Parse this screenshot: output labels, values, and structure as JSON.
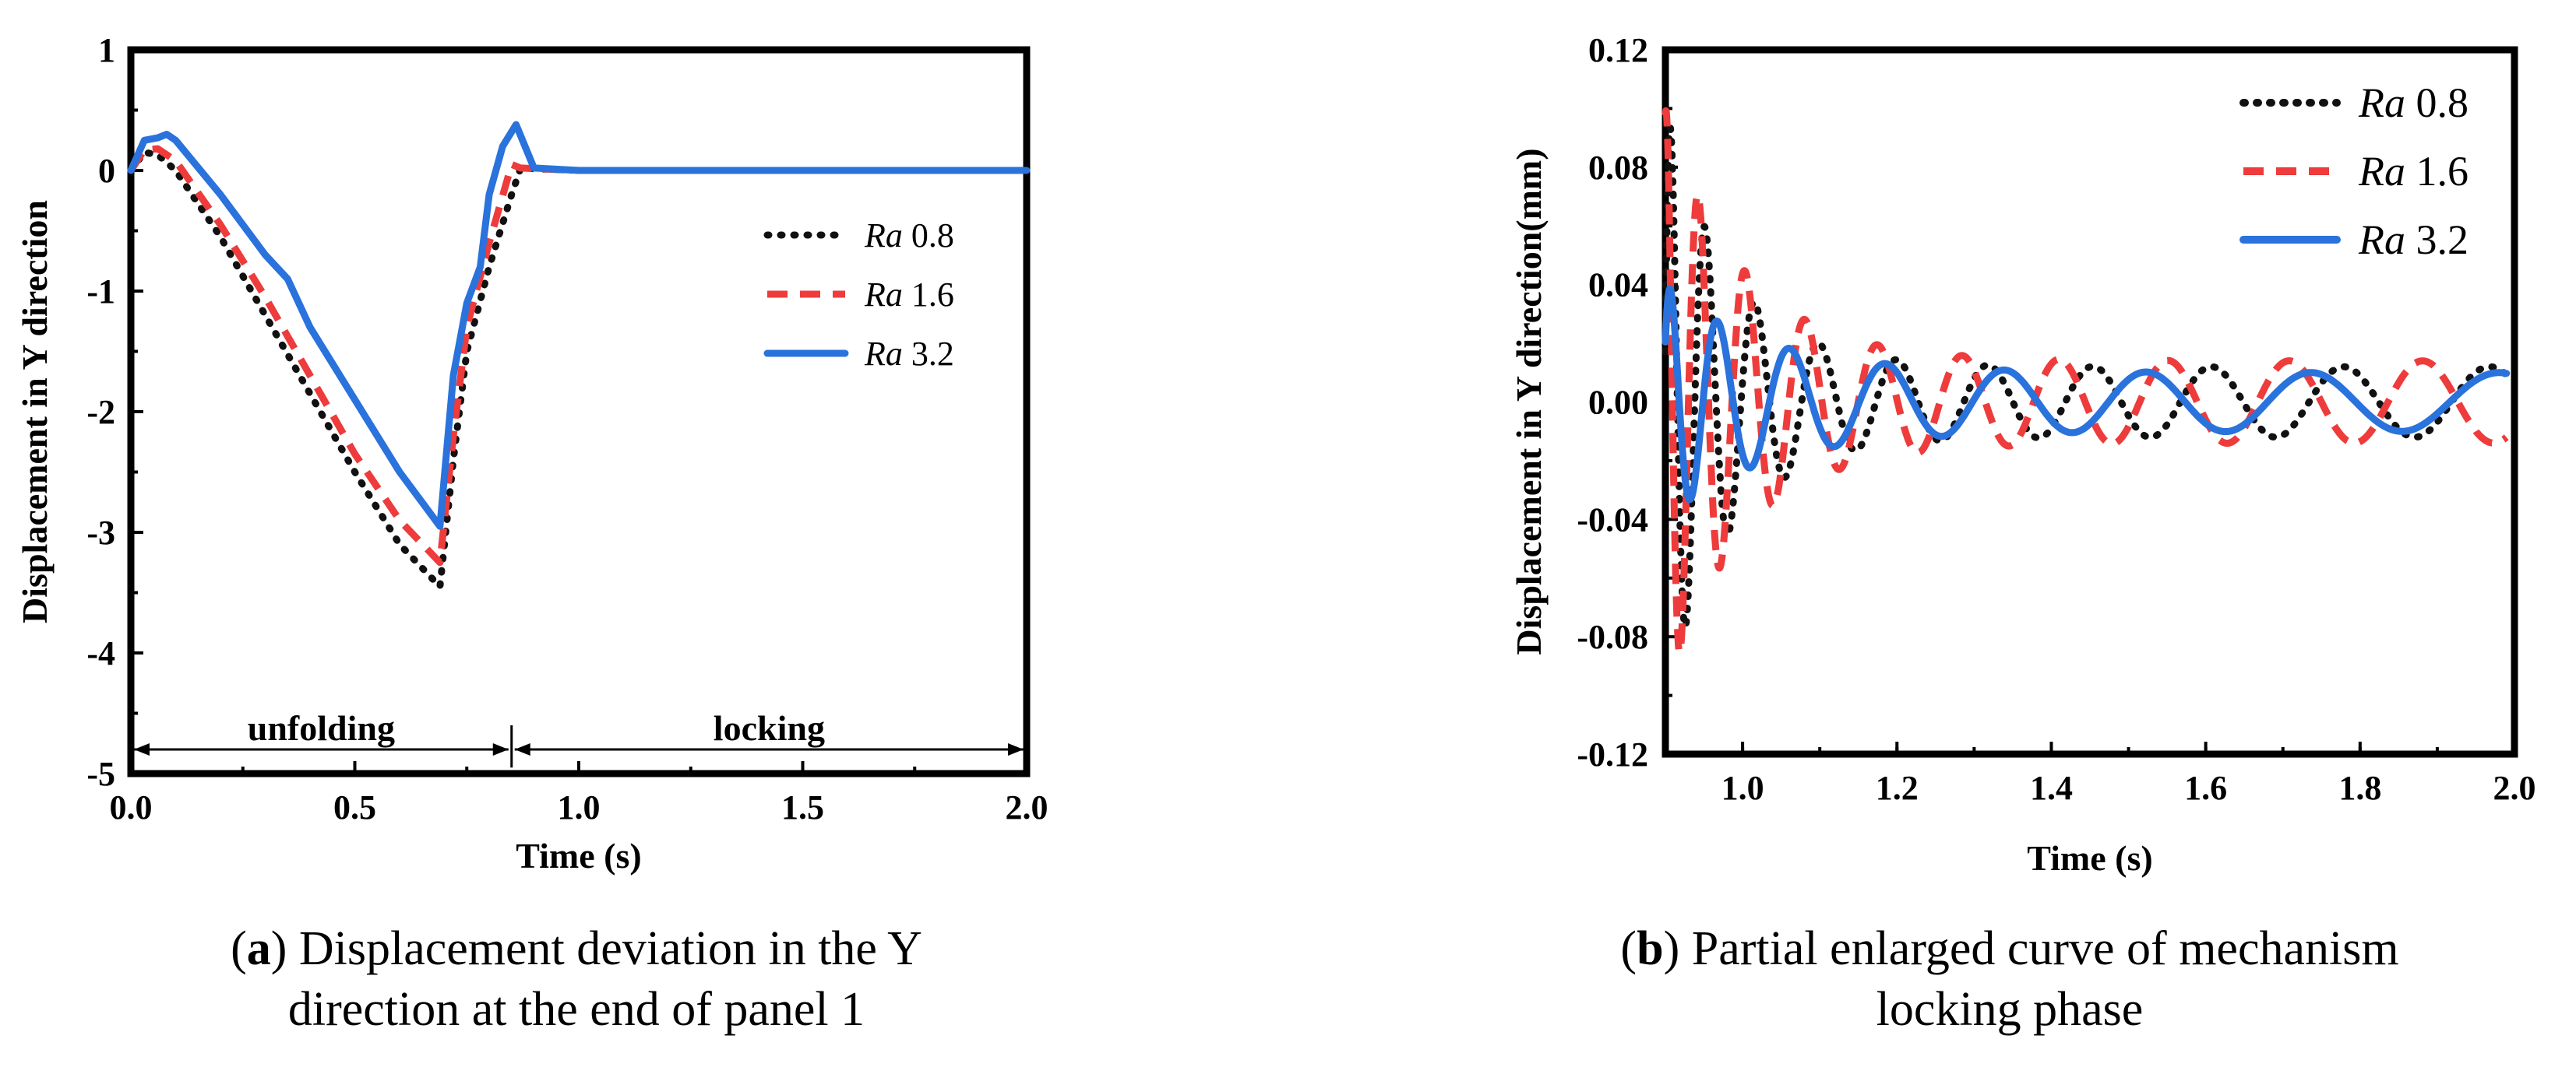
{
  "figure": {
    "caption_a": {
      "letter": "a",
      "line1": "Displacement deviation in the Y",
      "line2": "direction at the end of panel 1"
    },
    "caption_b": {
      "letter": "b",
      "line1": "Partial enlarged curve of mechanism",
      "line2": "locking phase"
    }
  },
  "series_style": [
    {
      "name": "Ra",
      "value": "0.8",
      "color": "#111111",
      "dash": "dotted"
    },
    {
      "name": "Ra",
      "value": "1.6",
      "color": "#ee3b3b",
      "dash": "dashed"
    },
    {
      "name": "Ra",
      "value": "3.2",
      "color": "#2a72dc",
      "dash": "solid"
    }
  ],
  "chart_data": [
    {
      "id": "a",
      "type": "line",
      "title": "",
      "xlabel": "Time (s)",
      "ylabel": "Displacement in Y direction",
      "xlim": [
        0,
        2.0
      ],
      "ylim": [
        -5,
        1
      ],
      "xticks": [
        "0.0",
        "0.5",
        "1.0",
        "1.5",
        "2.0"
      ],
      "yticks": [
        "1",
        "0",
        "-1",
        "-2",
        "-3",
        "-4",
        "-5"
      ],
      "phases": [
        {
          "label": "unfolding",
          "from": 0,
          "to": 0.85
        },
        {
          "label": "locking",
          "from": 0.85,
          "to": 2.0
        }
      ],
      "legend_position": "right-middle",
      "series": [
        {
          "name": "Ra 0.8",
          "x": [
            0,
            0.03,
            0.06,
            0.1,
            0.2,
            0.3,
            0.4,
            0.5,
            0.6,
            0.69,
            0.72,
            0.75,
            0.8,
            0.85,
            0.87,
            1.0,
            1.5,
            2.0
          ],
          "y": [
            0,
            0.15,
            0.13,
            0,
            -0.55,
            -1.2,
            -1.85,
            -2.5,
            -3.1,
            -3.45,
            -2.4,
            -1.5,
            -0.8,
            -0.2,
            0.02,
            0,
            0,
            0
          ]
        },
        {
          "name": "Ra 1.6",
          "x": [
            0,
            0.03,
            0.06,
            0.1,
            0.2,
            0.3,
            0.4,
            0.5,
            0.6,
            0.69,
            0.72,
            0.75,
            0.8,
            0.85,
            0.87,
            1.0,
            1.5,
            2.0
          ],
          "y": [
            0,
            0.17,
            0.18,
            0.08,
            -0.45,
            -1.05,
            -1.7,
            -2.35,
            -2.9,
            -3.25,
            -2.2,
            -1.3,
            -0.6,
            0.05,
            0.02,
            0,
            0,
            0
          ]
        },
        {
          "name": "Ra 3.2",
          "x": [
            0,
            0.03,
            0.06,
            0.08,
            0.1,
            0.2,
            0.3,
            0.35,
            0.4,
            0.5,
            0.6,
            0.69,
            0.72,
            0.75,
            0.78,
            0.8,
            0.83,
            0.86,
            0.9,
            1.0,
            1.5,
            2.0
          ],
          "y": [
            0,
            0.25,
            0.27,
            0.3,
            0.25,
            -0.2,
            -0.7,
            -0.9,
            -1.3,
            -1.9,
            -2.5,
            -2.95,
            -1.7,
            -1.1,
            -0.8,
            -0.2,
            0.2,
            0.38,
            0.02,
            0,
            0,
            0
          ]
        }
      ]
    },
    {
      "id": "b",
      "type": "line",
      "title": "",
      "xlabel": "Time (s)",
      "ylabel": "Displacement in Y direction(mm)",
      "xlim": [
        0.9,
        2.0
      ],
      "ylim": [
        -0.12,
        0.12
      ],
      "xticks": [
        "1.0",
        "1.2",
        "1.4",
        "1.6",
        "1.8",
        "2.0"
      ],
      "yticks": [
        "0.12",
        "0.08",
        "0.04",
        "0.00",
        "-0.04",
        "-0.08",
        "-0.12"
      ],
      "legend_position": "top-right",
      "series": [
        {
          "name": "Ra 0.8",
          "t0": 0.9,
          "t1": 1.99,
          "amp0": 0.1,
          "amp_inf": 0.012,
          "decay": 12,
          "period0": 0.022,
          "period1": 0.2
        },
        {
          "name": "Ra 1.6",
          "t0": 0.9,
          "t1": 1.99,
          "amp0": 0.1,
          "amp_inf": 0.014,
          "decay": 10,
          "period0": 0.024,
          "period1": 0.19
        },
        {
          "name": "Ra 3.2",
          "t0": 0.9,
          "t1": 1.99,
          "amp0": 0.04,
          "amp_inf": 0.01,
          "decay": 8,
          "period0": 0.028,
          "period1": 0.26
        }
      ]
    }
  ]
}
